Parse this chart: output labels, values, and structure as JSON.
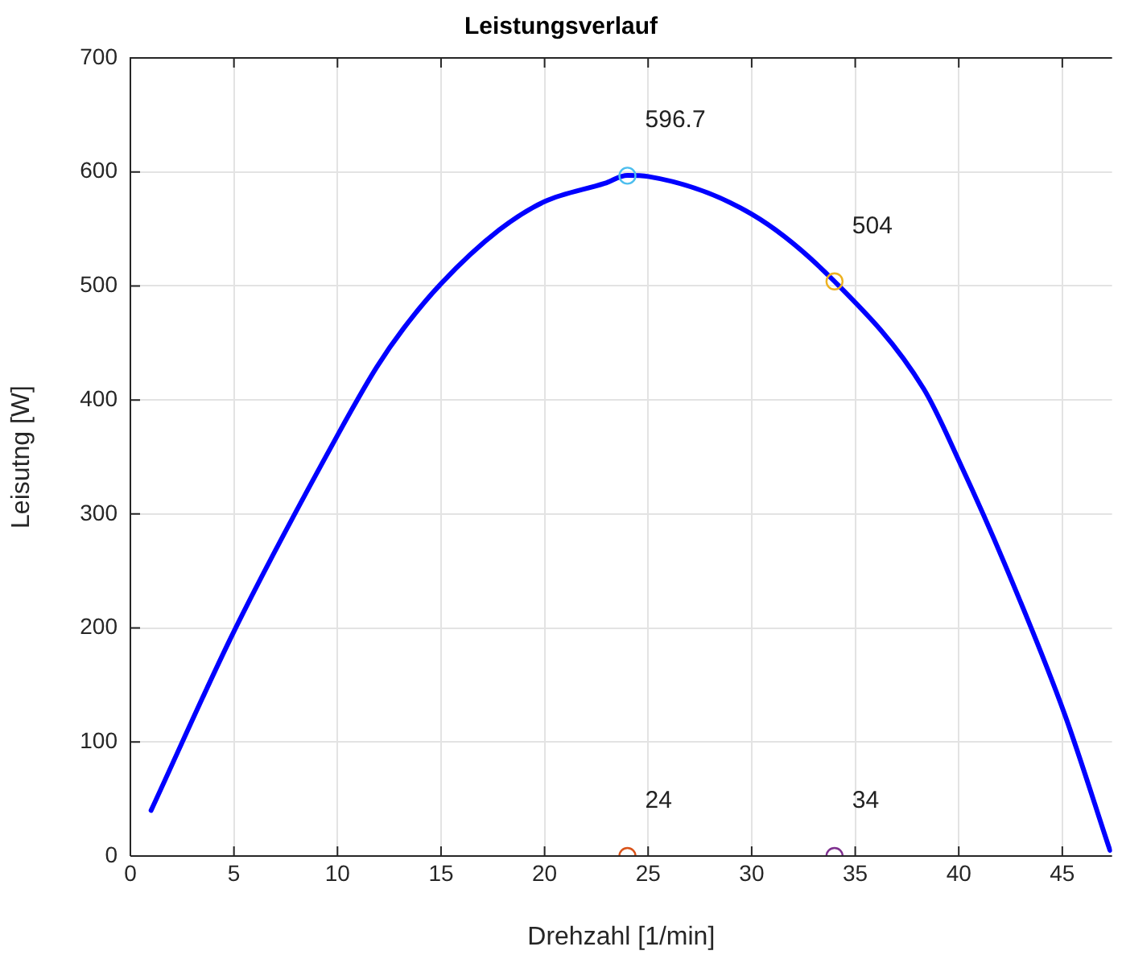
{
  "chart_data": {
    "type": "line",
    "title": "Leistungsverlauf",
    "xlabel": "Drehzahl [1/min]",
    "ylabel": "Leisutng [W]",
    "xlim": [
      0,
      47.4
    ],
    "xticks": [
      0,
      5,
      10,
      15,
      20,
      25,
      30,
      35,
      40,
      45
    ],
    "ylim": [
      0,
      700
    ],
    "yticks": [
      0,
      100,
      200,
      300,
      400,
      500,
      600,
      700
    ],
    "grid": true,
    "legend": false,
    "series": [
      {
        "color": "#0000ff",
        "marker": "none",
        "line_style": "solid",
        "x": [
          1,
          5,
          10,
          11.9,
          13.2,
          15,
          17.8,
          20,
          22.9,
          24,
          25,
          30,
          34,
          38.3,
          40.1,
          42.2,
          45.1,
          47.3
        ],
        "values": [
          40,
          197,
          369,
          429,
          463,
          502,
          549,
          574,
          590,
          597,
          596,
          563,
          504,
          410,
          343,
          257,
          125,
          5
        ]
      },
      {
        "type": "scatter",
        "color": "#4dbeee",
        "marker": "circle",
        "x": [
          24
        ],
        "values": [
          596.7
        ],
        "value_labels": [
          "596.7"
        ]
      },
      {
        "type": "scatter",
        "color": "#edb120",
        "marker": "circle",
        "x": [
          34
        ],
        "values": [
          504
        ],
        "value_labels": [
          "504"
        ]
      },
      {
        "type": "scatter",
        "color": "#d95319",
        "marker": "circle",
        "x": [
          24
        ],
        "values": [
          0
        ]
      },
      {
        "type": "scatter",
        "color": "#7e2f8e",
        "marker": "circle",
        "x": [
          34
        ],
        "values": [
          0
        ]
      }
    ],
    "annotations": [
      {
        "text": "24",
        "x": 24,
        "y": 0
      },
      {
        "text": "34",
        "x": 34,
        "y": 0
      }
    ]
  }
}
